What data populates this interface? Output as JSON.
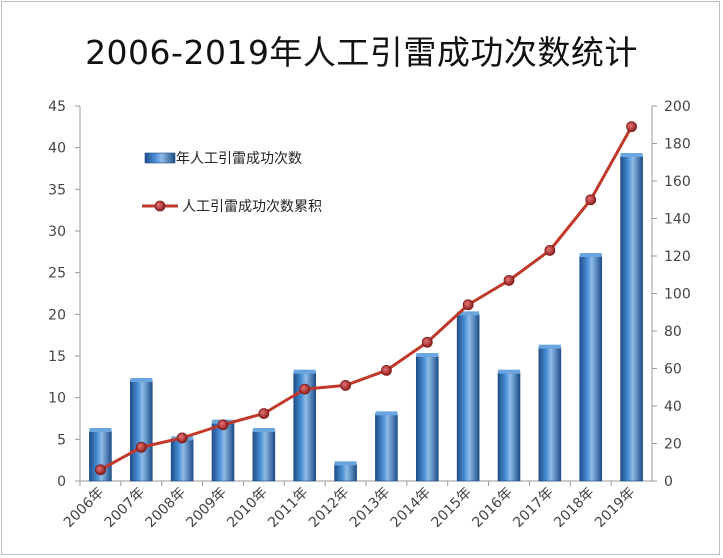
{
  "chart_data": {
    "type": "bar",
    "title": "2006-2019年人工引雷成功次数统计",
    "categories": [
      "2006年",
      "2007年",
      "2008年",
      "2009年",
      "2010年",
      "2011年",
      "2012年",
      "2013年",
      "2014年",
      "2015年",
      "2016年",
      "2017年",
      "2018年",
      "2019年"
    ],
    "series": [
      {
        "name": "年人工引雷成功次数",
        "type": "bar",
        "axis": "left",
        "values": [
          6,
          12,
          5,
          7,
          6,
          13,
          2,
          8,
          15,
          20,
          13,
          16,
          27,
          39
        ]
      },
      {
        "name": "人工引雷成功次数累积",
        "type": "line",
        "axis": "right",
        "values": [
          6,
          18,
          23,
          30,
          36,
          49,
          51,
          59,
          74,
          94,
          107,
          123,
          150,
          189
        ]
      }
    ],
    "yleft": {
      "min": 0,
      "max": 45,
      "step": 5
    },
    "yright": {
      "min": 0,
      "max": 200,
      "step": 20
    },
    "grid": false,
    "legend_position": "top-left",
    "colors": {
      "bar": "#3f7fc4",
      "bar_dark": "#1f4f8a",
      "bar_light": "#8fbce8",
      "line": "#c0392b",
      "marker": "#a93226"
    }
  }
}
